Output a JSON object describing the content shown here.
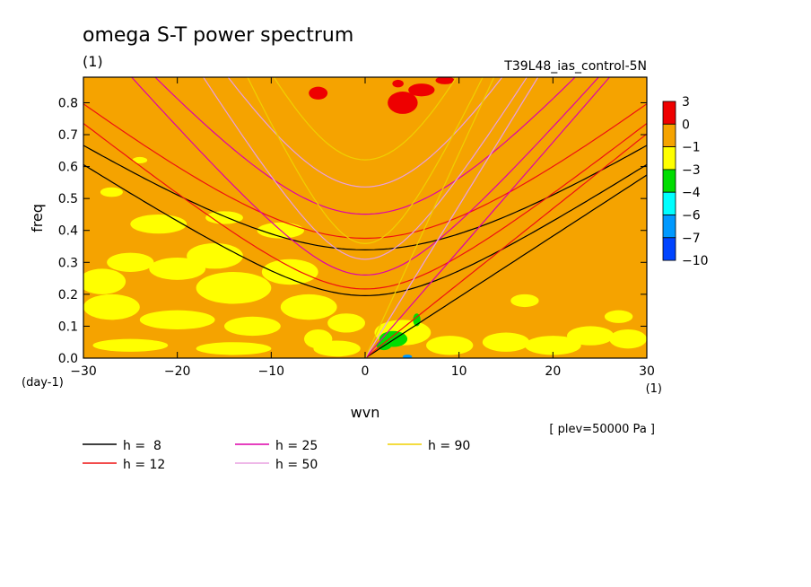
{
  "chart_data": {
    "type": "heatmap",
    "title": "omega S-T power spectrum",
    "subtitle_left": "(1)",
    "subtitle_right": "T39L48_ias_control-5N",
    "xlabel": "wvn",
    "ylabel": "freq",
    "x_unit": "(1)",
    "y_unit": "(day-1)",
    "note": "[ plev=50000 Pa ]",
    "xlim": [
      -30,
      30
    ],
    "ylim": [
      0,
      0.88
    ],
    "xticks": [
      -30,
      -20,
      -10,
      0,
      10,
      20,
      30
    ],
    "yticks": [
      0.0,
      0.1,
      0.2,
      0.3,
      0.4,
      0.5,
      0.6,
      0.7,
      0.8
    ],
    "colorbar": {
      "labels": [
        "3",
        "0",
        "−1",
        "−3",
        "−4",
        "−6",
        "−7",
        "−10"
      ],
      "colors": [
        "#ee0000",
        "#f5a300",
        "#ffff00",
        "#00dd00",
        "#00ffff",
        "#0099ff",
        "#0044ff"
      ]
    },
    "curves": [
      {
        "name": "h =  8",
        "h": 8,
        "color": "#000000"
      },
      {
        "name": "h = 12",
        "h": 12,
        "color": "#ee1111"
      },
      {
        "name": "h = 25",
        "h": 25,
        "color": "#dd00aa"
      },
      {
        "name": "h = 50",
        "h": 50,
        "color": "#e8a0e0"
      },
      {
        "name": "h = 90",
        "h": 90,
        "color": "#f0d000"
      }
    ],
    "field_background": "#f5a300",
    "patches": [
      {
        "level": 0,
        "x": -5,
        "y": 0.83,
        "rx": 1,
        "ry": 0.02
      },
      {
        "level": 0,
        "x": 4,
        "y": 0.8,
        "rx": 1.6,
        "ry": 0.035
      },
      {
        "level": 0,
        "x": 6,
        "y": 0.84,
        "rx": 1.4,
        "ry": 0.02
      },
      {
        "level": 0,
        "x": 8.5,
        "y": 0.87,
        "rx": 1.0,
        "ry": 0.012
      },
      {
        "level": 0,
        "x": 3.5,
        "y": 0.86,
        "rx": 0.6,
        "ry": 0.012
      },
      {
        "level": -3,
        "x": 3,
        "y": 0.06,
        "rx": 1.5,
        "ry": 0.025
      },
      {
        "level": -3,
        "x": 5.5,
        "y": 0.12,
        "rx": 0.4,
        "ry": 0.02
      },
      {
        "level": -3,
        "x": 2,
        "y": 0.04,
        "rx": 0.8,
        "ry": 0.015
      },
      {
        "level": -4,
        "x": 4.5,
        "y": 0.005,
        "rx": 0.5,
        "ry": 0.006
      }
    ],
    "yellow_regions": [
      {
        "x": -28,
        "y": 0.24,
        "rx": 2.5,
        "ry": 0.04
      },
      {
        "x": -25,
        "y": 0.3,
        "rx": 2.5,
        "ry": 0.03
      },
      {
        "x": -20,
        "y": 0.28,
        "rx": 3,
        "ry": 0.035
      },
      {
        "x": -16,
        "y": 0.32,
        "rx": 3,
        "ry": 0.04
      },
      {
        "x": -14,
        "y": 0.22,
        "rx": 4,
        "ry": 0.05
      },
      {
        "x": -8,
        "y": 0.27,
        "rx": 3,
        "ry": 0.04
      },
      {
        "x": -22,
        "y": 0.42,
        "rx": 3,
        "ry": 0.03
      },
      {
        "x": -15,
        "y": 0.44,
        "rx": 2,
        "ry": 0.02
      },
      {
        "x": -9,
        "y": 0.4,
        "rx": 2.5,
        "ry": 0.025
      },
      {
        "x": -27,
        "y": 0.16,
        "rx": 3,
        "ry": 0.04
      },
      {
        "x": -20,
        "y": 0.12,
        "rx": 4,
        "ry": 0.03
      },
      {
        "x": -12,
        "y": 0.1,
        "rx": 3,
        "ry": 0.03
      },
      {
        "x": -6,
        "y": 0.16,
        "rx": 3,
        "ry": 0.04
      },
      {
        "x": -2,
        "y": 0.11,
        "rx": 2,
        "ry": 0.03
      },
      {
        "x": -25,
        "y": 0.04,
        "rx": 4,
        "ry": 0.02
      },
      {
        "x": -14,
        "y": 0.03,
        "rx": 4,
        "ry": 0.02
      },
      {
        "x": -3,
        "y": 0.03,
        "rx": 2.5,
        "ry": 0.025
      },
      {
        "x": 4,
        "y": 0.08,
        "rx": 3,
        "ry": 0.04
      },
      {
        "x": 9,
        "y": 0.04,
        "rx": 2.5,
        "ry": 0.03
      },
      {
        "x": 15,
        "y": 0.05,
        "rx": 2.5,
        "ry": 0.03
      },
      {
        "x": 20,
        "y": 0.04,
        "rx": 3,
        "ry": 0.03
      },
      {
        "x": 24,
        "y": 0.07,
        "rx": 2.5,
        "ry": 0.03
      },
      {
        "x": 28,
        "y": 0.06,
        "rx": 2,
        "ry": 0.03
      },
      {
        "x": 17,
        "y": 0.18,
        "rx": 1.5,
        "ry": 0.02
      },
      {
        "x": 27,
        "y": 0.13,
        "rx": 1.5,
        "ry": 0.02
      },
      {
        "x": -27,
        "y": 0.52,
        "rx": 1.2,
        "ry": 0.015
      },
      {
        "x": -24,
        "y": 0.62,
        "rx": 0.8,
        "ry": 0.01
      },
      {
        "x": -5,
        "y": 0.06,
        "rx": 1.5,
        "ry": 0.03
      }
    ]
  }
}
